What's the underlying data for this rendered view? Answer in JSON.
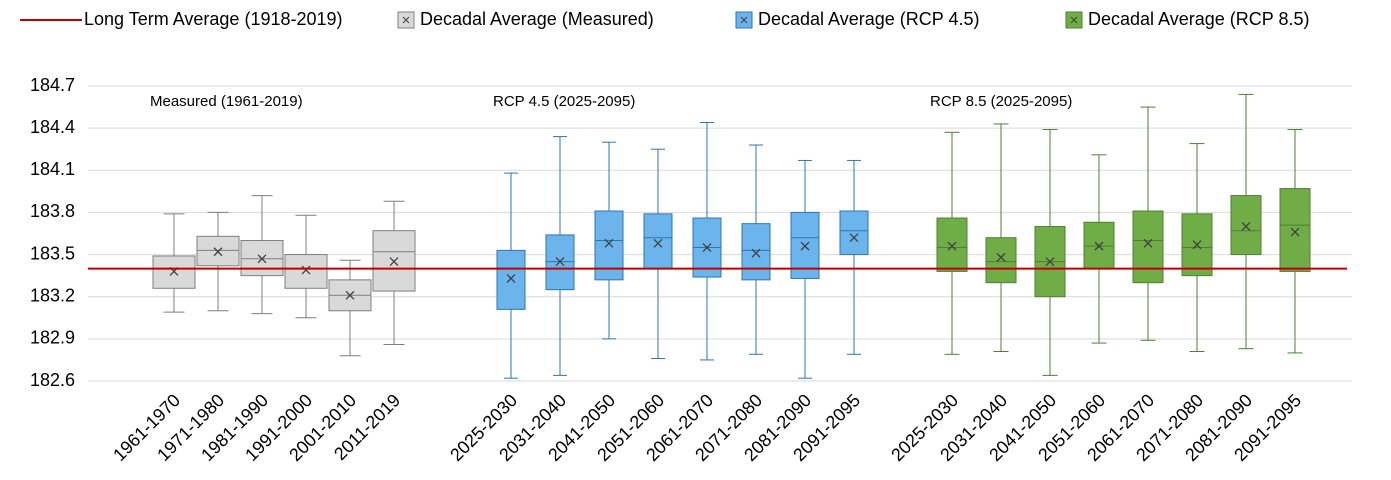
{
  "chart_data": {
    "type": "box",
    "ylim": [
      182.6,
      184.7
    ],
    "yticks": [
      182.6,
      182.9,
      183.2,
      183.5,
      183.8,
      184.1,
      184.4,
      184.7
    ],
    "grid": true,
    "legend": "top",
    "reference_line": {
      "name": "Long Term Average (1918-2019)",
      "value": 183.4,
      "color": "#c00000"
    },
    "series": [
      {
        "name": "Decadal Average (Measured)",
        "annotation": "Measured (1961-2019)",
        "color": "#d9d9d9",
        "edge_color": "#7f7f7f",
        "categories": [
          "1961-1970",
          "1971-1980",
          "1981-1990",
          "1991-2000",
          "2001-2010",
          "2011-2019"
        ],
        "min": [
          183.09,
          183.1,
          183.08,
          183.05,
          182.78,
          182.86
        ],
        "q1": [
          183.26,
          183.42,
          183.35,
          183.26,
          183.1,
          183.24
        ],
        "median": [
          183.4,
          183.53,
          183.47,
          183.4,
          183.21,
          183.52
        ],
        "q3": [
          183.49,
          183.63,
          183.6,
          183.5,
          183.32,
          183.67
        ],
        "max": [
          183.79,
          183.8,
          183.92,
          183.78,
          183.46,
          183.88
        ],
        "mean": [
          183.38,
          183.52,
          183.47,
          183.39,
          183.21,
          183.45
        ]
      },
      {
        "name": "Decadal Average (RCP 4.5)",
        "annotation": "RCP 4.5 (2025-2095)",
        "color": "#6cb4ec",
        "edge_color": "#2e75b6",
        "categories": [
          "2025-2030",
          "2031-2040",
          "2041-2050",
          "2051-2060",
          "2061-2070",
          "2071-2080",
          "2081-2090",
          "2091-2095"
        ],
        "min": [
          182.62,
          182.64,
          182.9,
          182.76,
          182.75,
          182.79,
          182.62,
          182.79
        ],
        "q1": [
          183.11,
          183.25,
          183.32,
          183.4,
          183.34,
          183.32,
          183.33,
          183.5
        ],
        "median": [
          183.4,
          183.45,
          183.6,
          183.62,
          183.55,
          183.53,
          183.62,
          183.67
        ],
        "q3": [
          183.53,
          183.64,
          183.81,
          183.79,
          183.76,
          183.72,
          183.8,
          183.81
        ],
        "max": [
          184.08,
          184.34,
          184.3,
          184.25,
          184.44,
          184.28,
          184.17,
          184.17
        ],
        "mean": [
          183.33,
          183.45,
          183.58,
          183.58,
          183.55,
          183.51,
          183.56,
          183.62
        ]
      },
      {
        "name": "Decadal Average (RCP 8.5)",
        "annotation": "RCP 8.5 (2025-2095)",
        "color": "#70ad47",
        "edge_color": "#507e32",
        "categories": [
          "2025-2030",
          "2031-2040",
          "2041-2050",
          "2051-2060",
          "2061-2070",
          "2071-2080",
          "2081-2090",
          "2091-2095"
        ],
        "min": [
          182.79,
          182.81,
          182.64,
          182.87,
          182.89,
          182.81,
          182.83,
          182.8
        ],
        "q1": [
          183.38,
          183.3,
          183.2,
          183.4,
          183.3,
          183.35,
          183.5,
          183.38
        ],
        "median": [
          183.55,
          183.45,
          183.45,
          183.56,
          183.6,
          183.55,
          183.67,
          183.71
        ],
        "q3": [
          183.76,
          183.62,
          183.7,
          183.73,
          183.81,
          183.79,
          183.92,
          183.97
        ],
        "max": [
          184.37,
          184.43,
          184.39,
          184.21,
          184.55,
          184.29,
          184.64,
          184.39
        ],
        "mean": [
          183.56,
          183.48,
          183.45,
          183.56,
          183.58,
          183.57,
          183.7,
          183.66
        ]
      }
    ]
  }
}
